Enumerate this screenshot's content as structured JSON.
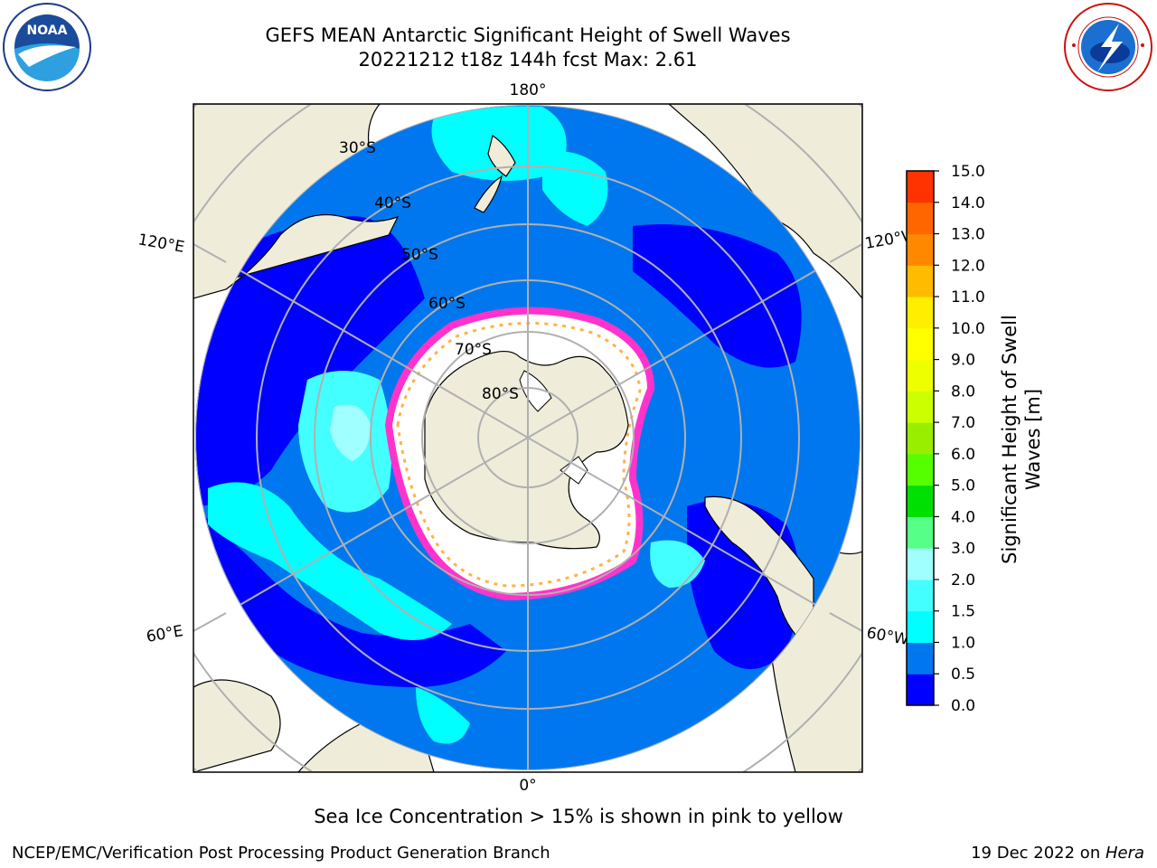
{
  "title_line1": "GEFS MEAN Antarctic Significant Height of Swell Waves",
  "title_line2": "20221212 t18z 144h fcst   Max: 2.61",
  "note": "Sea Ice Concentration > 15% is shown in pink to yellow",
  "footer_left": "NCEP/EMC/Verification Post Processing Product Generation Branch",
  "footer_date": "19 Dec 2022 on ",
  "footer_machine": "Hera",
  "logos": {
    "left": "noaa-logo",
    "right": "nws-logo"
  },
  "map": {
    "projection": "south-polar-stereographic",
    "lon_labels": {
      "top": "180°",
      "bottom": "0°",
      "upper_left": "120°E",
      "lower_left": "60°E",
      "upper_right": "120°W",
      "lower_right": "60°W"
    },
    "lat_labels": [
      "30°S",
      "40°S",
      "50°S",
      "60°S",
      "70°S",
      "80°S"
    ],
    "colors": {
      "land": "#efedda",
      "ice_edge": "#ff33cc",
      "ice_inner": "#ffb347",
      "grid": "#b0b0b0"
    }
  },
  "colorbar": {
    "label": "Significant Height of Swell Waves [m]",
    "label_line1": "Significant Height of Swell",
    "label_line2": "Waves [m]",
    "ticks": [
      "0.0",
      "0.5",
      "1.0",
      "1.5",
      "2.0",
      "3.0",
      "4.0",
      "5.0",
      "6.0",
      "7.0",
      "8.0",
      "9.0",
      "10.0",
      "11.0",
      "12.0",
      "13.0",
      "14.0",
      "15.0"
    ],
    "colors": [
      "#0000ff",
      "#0077ee",
      "#00ffff",
      "#44ffff",
      "#a0ffff",
      "#55ff88",
      "#00e000",
      "#55ff00",
      "#99ee00",
      "#ccff00",
      "#eeff00",
      "#ffff00",
      "#ffee00",
      "#ffbb00",
      "#ff8800",
      "#ff6600",
      "#ff3300",
      "#ff0000"
    ]
  },
  "chart_data": {
    "type": "heatmap",
    "title": "GEFS MEAN Antarctic Significant Height of Swell Waves",
    "subtitle": "20221212 t18z 144h fcst   Max: 2.61",
    "max_value": 2.61,
    "units": "m",
    "legend": "Significant Height of Swell Waves [m]",
    "legend_placement": "right",
    "scale_range": [
      0.0,
      15.0
    ],
    "grid": true
  }
}
